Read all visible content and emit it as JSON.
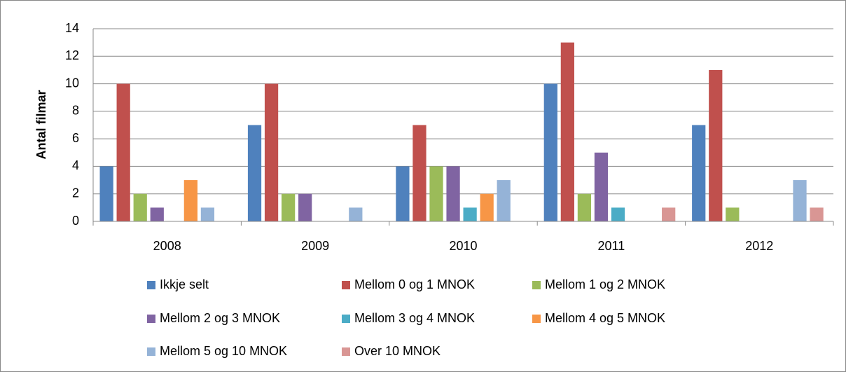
{
  "chart_data": {
    "type": "bar",
    "y_label": "Antal filmar",
    "categories": [
      "2008",
      "2009",
      "2010",
      "2011",
      "2012"
    ],
    "series": [
      {
        "name": "Ikkje selt",
        "color": "#4F81BD",
        "values": [
          4,
          7,
          4,
          10,
          7
        ]
      },
      {
        "name": "Mellom 0 og 1 MNOK",
        "color": "#C0504D",
        "values": [
          10,
          10,
          7,
          13,
          11
        ]
      },
      {
        "name": "Mellom 1 og 2 MNOK",
        "color": "#9BBB59",
        "values": [
          2,
          2,
          4,
          2,
          1
        ]
      },
      {
        "name": "Mellom 2 og 3 MNOK",
        "color": "#8064A2",
        "values": [
          1,
          2,
          4,
          5,
          0
        ]
      },
      {
        "name": "Mellom 3 og 4 MNOK",
        "color": "#4BACC6",
        "values": [
          0,
          0,
          1,
          1,
          0
        ]
      },
      {
        "name": "Mellom 4 og 5 MNOK",
        "color": "#F79646",
        "values": [
          3,
          0,
          2,
          0,
          0
        ]
      },
      {
        "name": "Mellom 5 og 10 MNOK",
        "color": "#95B3D7",
        "values": [
          1,
          1,
          3,
          0,
          3
        ]
      },
      {
        "name": "Over 10 MNOK",
        "color": "#D99694",
        "values": [
          0,
          0,
          0,
          1,
          1
        ]
      }
    ],
    "ylim": [
      0,
      14
    ],
    "yticks": [
      0,
      2,
      4,
      6,
      8,
      10,
      12,
      14
    ],
    "grid": true,
    "legend": "bottom"
  }
}
